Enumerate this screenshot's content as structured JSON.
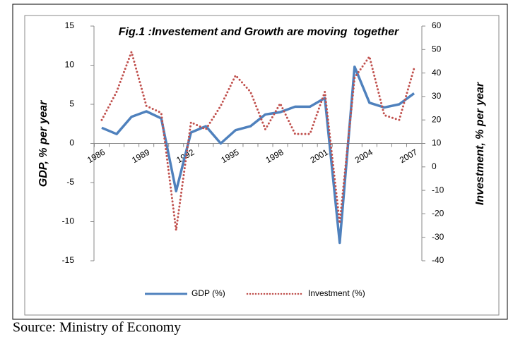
{
  "chart_data": {
    "type": "line",
    "title": "Fig.1 :Investement and Growth are moving  together",
    "ylabel": "GDP, % per year",
    "y2label": "Investment, % per year",
    "source": "Source: Ministry of Economy",
    "categories": [
      "1986",
      null,
      null,
      "1989",
      null,
      null,
      "1992",
      null,
      null,
      "1995",
      null,
      null,
      "1998",
      null,
      null,
      "2001",
      null,
      null,
      "2004",
      null,
      null,
      "2007"
    ],
    "series": [
      {
        "name": "GDP (%)",
        "color": "#4f81bd",
        "style": "solid",
        "values": [
          2.0,
          1.2,
          3.4,
          4.1,
          3.2,
          -6.1,
          1.4,
          2.2,
          0,
          1.7,
          2.2,
          3.7,
          4.0,
          4.7,
          4.7,
          5.8,
          -12.7,
          9.8,
          5.2,
          4.6,
          5.0,
          6.4
        ]
      },
      {
        "name": "Investment (%)",
        "color": "#c0504d",
        "style": "dotted",
        "axis": "y2",
        "values": [
          20,
          32,
          49,
          26,
          23,
          -27,
          19,
          16,
          26,
          39,
          32,
          16,
          27,
          14,
          14,
          32,
          -24,
          38,
          47,
          22,
          20,
          42
        ]
      }
    ],
    "ylim": [
      -15,
      15
    ],
    "yticks": [
      -15,
      -10,
      -5,
      0,
      5,
      10,
      15
    ],
    "y2lim": [
      -40,
      60
    ],
    "y2ticks": [
      -40,
      -30,
      -20,
      -10,
      0,
      10,
      20,
      30,
      40,
      50,
      60
    ],
    "legend": "bottom"
  }
}
